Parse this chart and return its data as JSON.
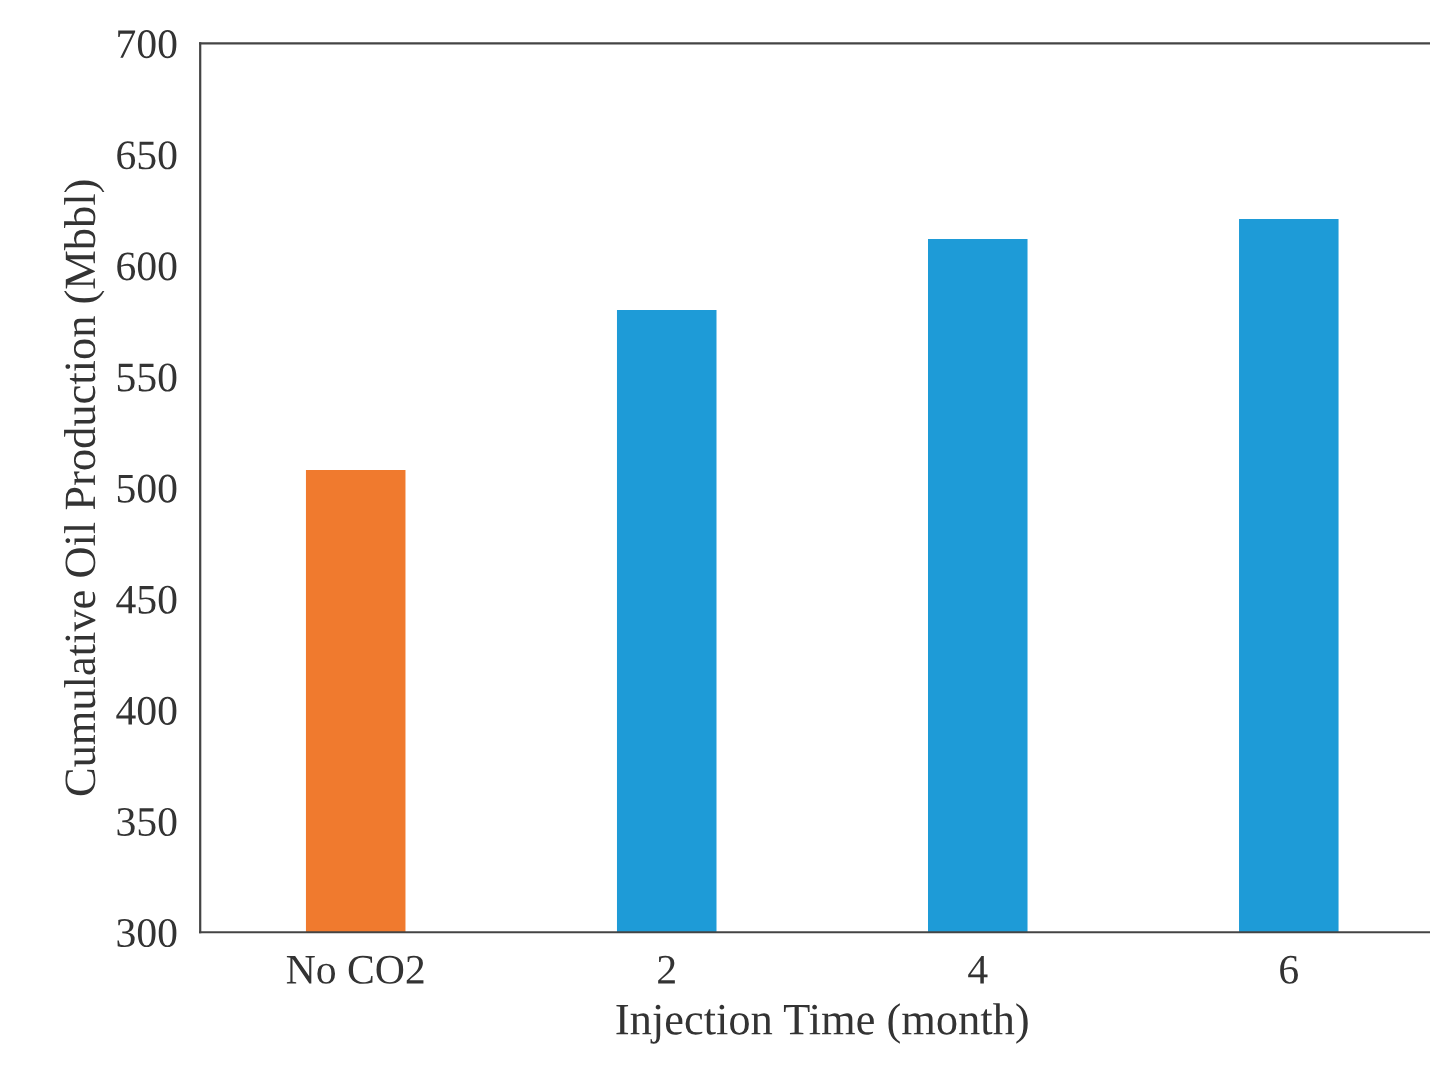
{
  "chart_data": {
    "type": "bar",
    "xlabel": "Injection Time (month)",
    "ylabel": "Cumulative Oil Production (Mbbl)",
    "categories": [
      "No CO2",
      "2",
      "4",
      "6"
    ],
    "values": [
      508,
      580,
      612,
      621
    ],
    "colors": [
      "#f07a2e",
      "#1e9bd7",
      "#1e9bd7",
      "#1e9bd7"
    ],
    "ylim": [
      300,
      700
    ],
    "yticks": [
      300,
      350,
      400,
      450,
      500,
      550,
      600,
      650,
      700
    ],
    "grid": false
  }
}
